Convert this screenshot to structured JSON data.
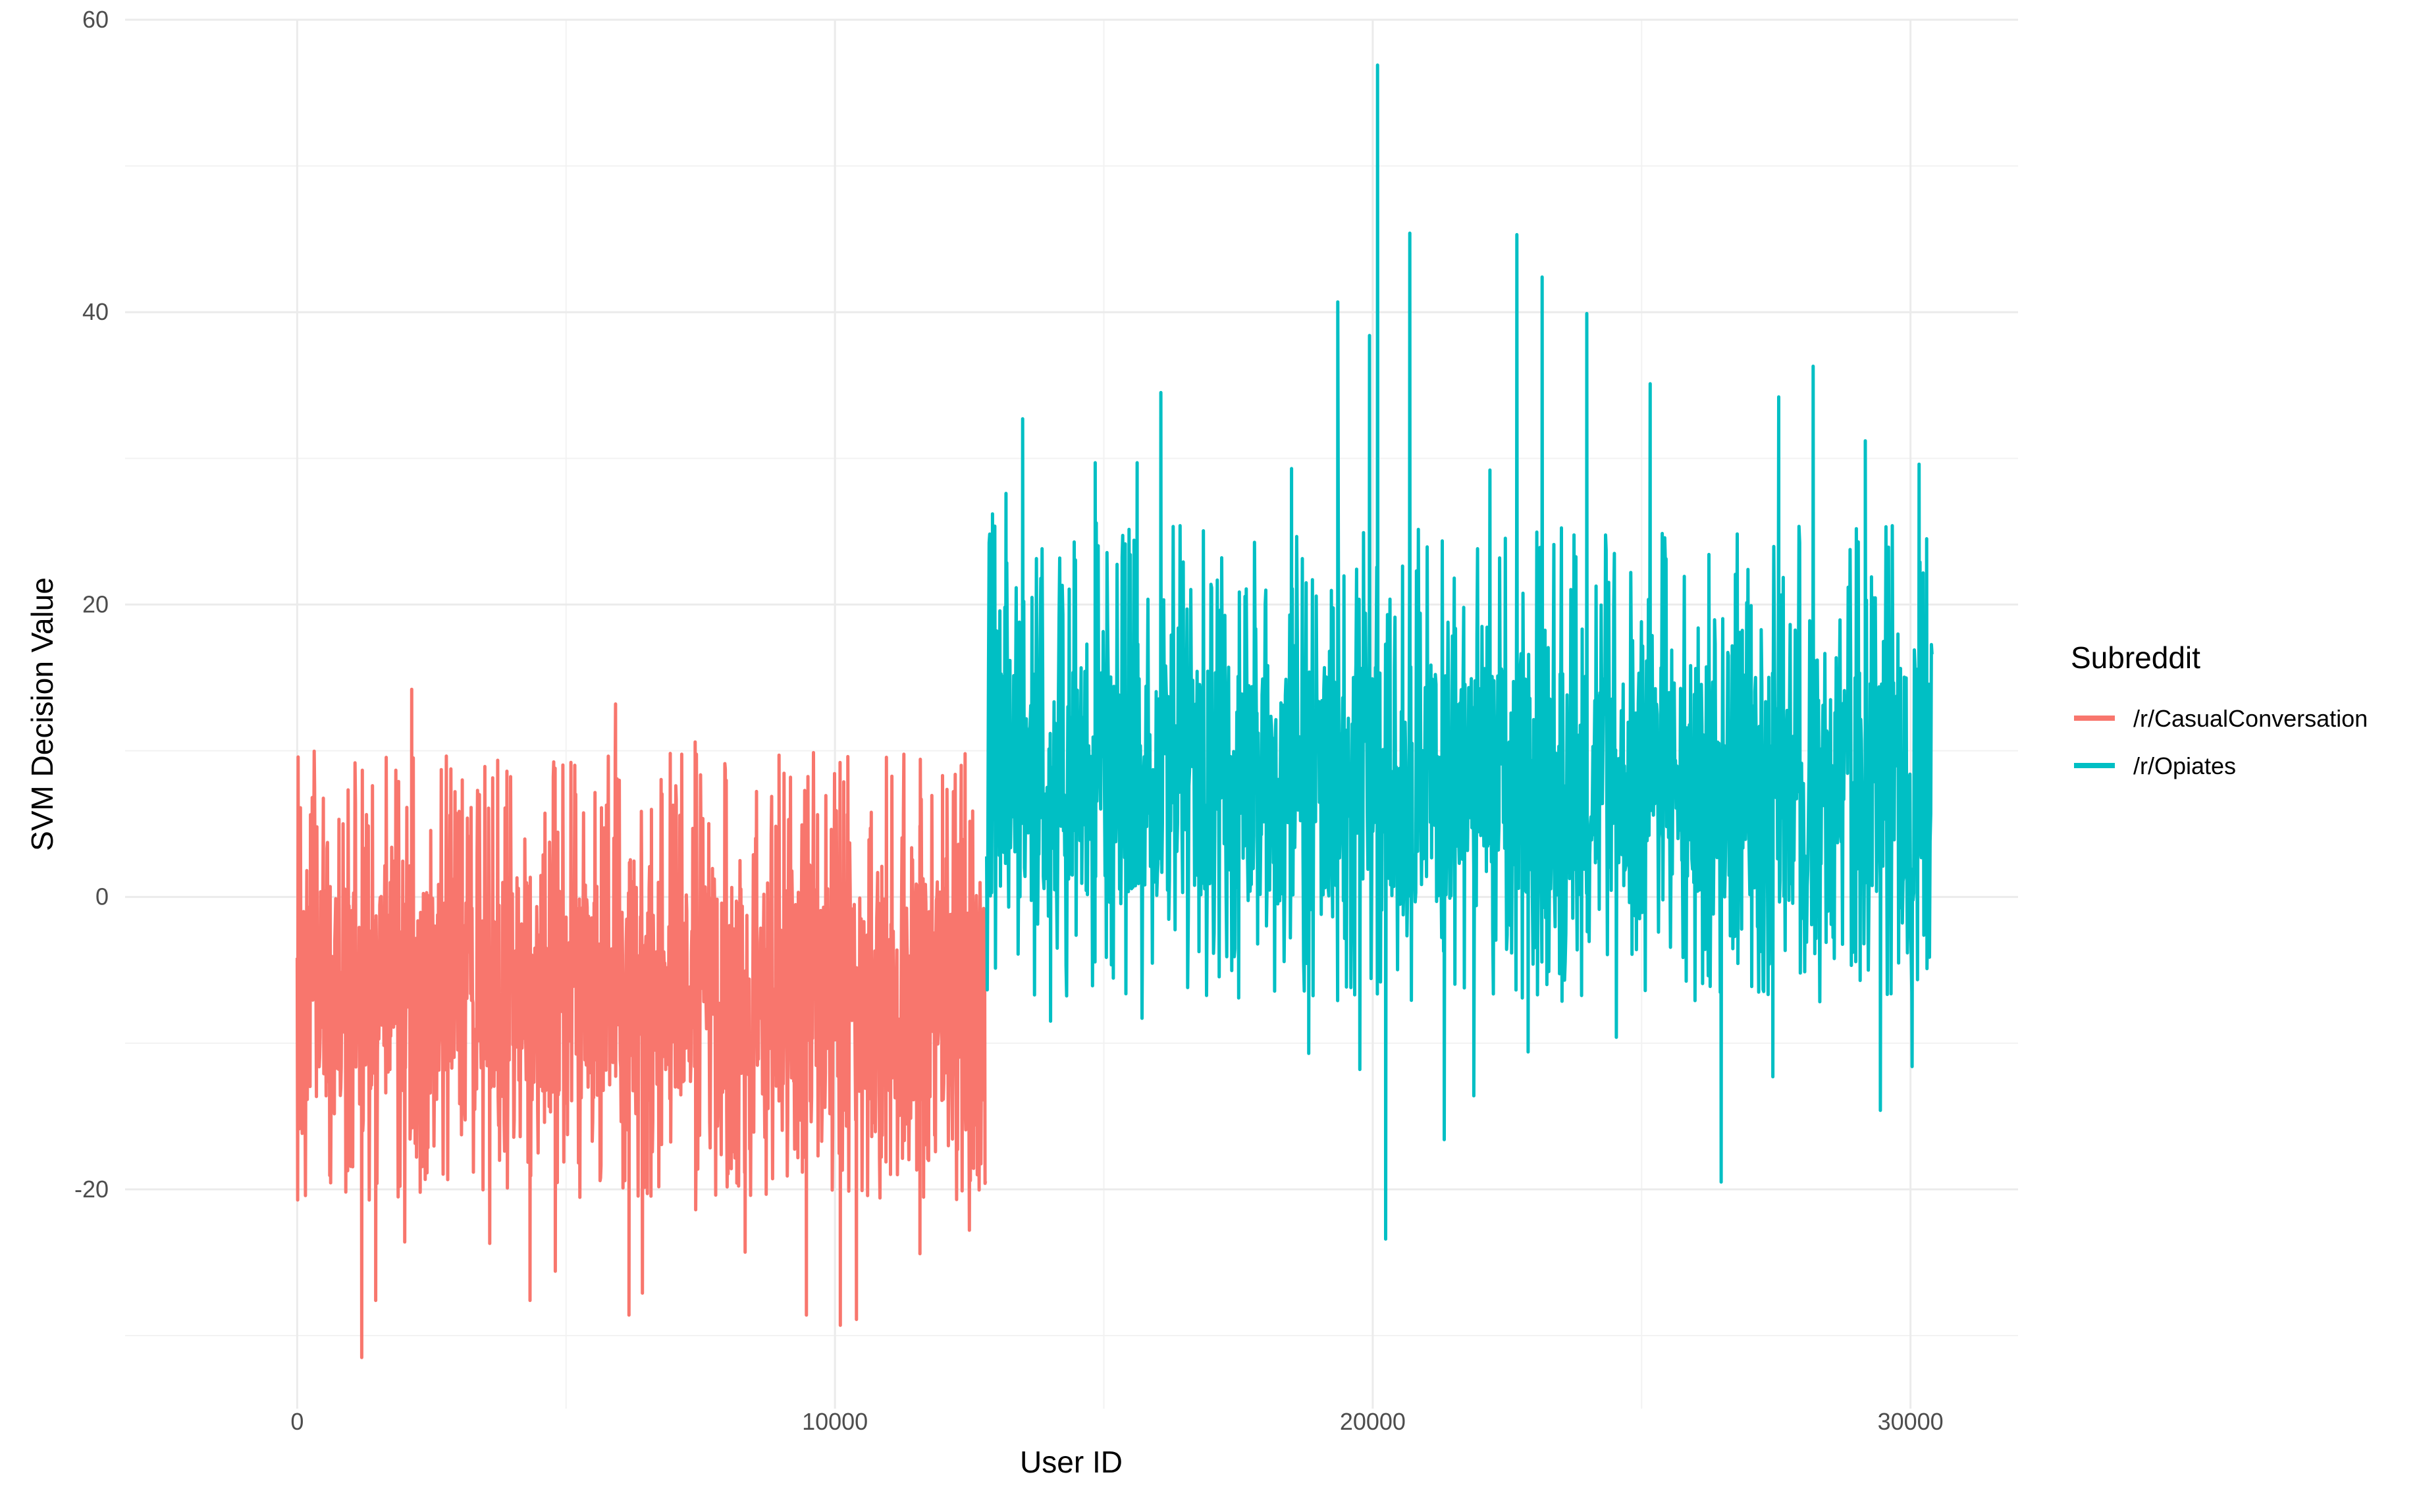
{
  "chart_data": {
    "type": "line",
    "title": "",
    "xlabel": "User ID",
    "ylabel": "SVM Decision Value",
    "xlim": [
      -3200,
      32000
    ],
    "ylim": [
      -35,
      60
    ],
    "x_ticks": [
      0,
      10000,
      20000,
      30000
    ],
    "y_ticks": [
      -20,
      0,
      20,
      40,
      60
    ],
    "x_tick_labels": [
      "0",
      "10000",
      "20000",
      "30000"
    ],
    "y_tick_labels": [
      "-20",
      "0",
      "20",
      "40",
      "60"
    ],
    "grid": true,
    "legend": {
      "title": "Subreddit",
      "placement": "right"
    },
    "series": [
      {
        "name": "/r/CasualConversation",
        "color": "#F8766D",
        "x_range": [
          0,
          12800
        ],
        "typical_band": [
          -14,
          1
        ],
        "peaks": [
          [
            60,
            6.1
          ],
          [
            280,
            6.8
          ],
          [
            2130,
            14.2
          ],
          [
            3070,
            8.0
          ],
          [
            3900,
            8.6
          ],
          [
            5090,
            9.2
          ],
          [
            5920,
            13.2
          ],
          [
            7400,
            10.6
          ],
          [
            8960,
            9.7
          ],
          [
            10240,
            9.6
          ],
          [
            12000,
            8.3
          ],
          [
            12420,
            9.8
          ]
        ],
        "troughs": [
          [
            1200,
            -31.5
          ],
          [
            1460,
            -27.6
          ],
          [
            2000,
            -23.6
          ],
          [
            3580,
            -23.7
          ],
          [
            4330,
            -27.6
          ],
          [
            4800,
            -25.6
          ],
          [
            6170,
            -28.6
          ],
          [
            6420,
            -27.1
          ],
          [
            7410,
            -21.4
          ],
          [
            8330,
            -24.3
          ],
          [
            9470,
            -28.6
          ],
          [
            10100,
            -29.3
          ],
          [
            10400,
            -28.9
          ],
          [
            11580,
            -24.4
          ],
          [
            12500,
            -22.8
          ]
        ]
      },
      {
        "name": "/r/Opiates",
        "color": "#00BFC4",
        "x_range": [
          12820,
          30400
        ],
        "typical_band": [
          0,
          16
        ],
        "peaks": [
          [
            12930,
            26.2
          ],
          [
            13180,
            27.6
          ],
          [
            13490,
            32.7
          ],
          [
            14840,
            29.7
          ],
          [
            15620,
            29.7
          ],
          [
            16060,
            34.5
          ],
          [
            18490,
            29.3
          ],
          [
            19350,
            40.7
          ],
          [
            19940,
            38.4
          ],
          [
            20090,
            56.9
          ],
          [
            20690,
            45.4
          ],
          [
            22180,
            29.2
          ],
          [
            22680,
            45.3
          ],
          [
            23150,
            42.4
          ],
          [
            23980,
            39.9
          ],
          [
            25160,
            35.1
          ],
          [
            27550,
            34.2
          ],
          [
            28190,
            36.3
          ],
          [
            29160,
            31.2
          ],
          [
            30160,
            29.6
          ],
          [
            30300,
            24.5
          ]
        ],
        "troughs": [
          [
            14010,
            -8.5
          ],
          [
            15710,
            -8.3
          ],
          [
            18810,
            -10.7
          ],
          [
            19760,
            -11.8
          ],
          [
            20240,
            -23.4
          ],
          [
            21330,
            -16.6
          ],
          [
            21880,
            -13.6
          ],
          [
            22890,
            -10.6
          ],
          [
            24530,
            -9.6
          ],
          [
            26480,
            -19.5
          ],
          [
            27440,
            -12.3
          ],
          [
            29440,
            -14.6
          ],
          [
            30030,
            -11.6
          ]
        ]
      }
    ]
  }
}
